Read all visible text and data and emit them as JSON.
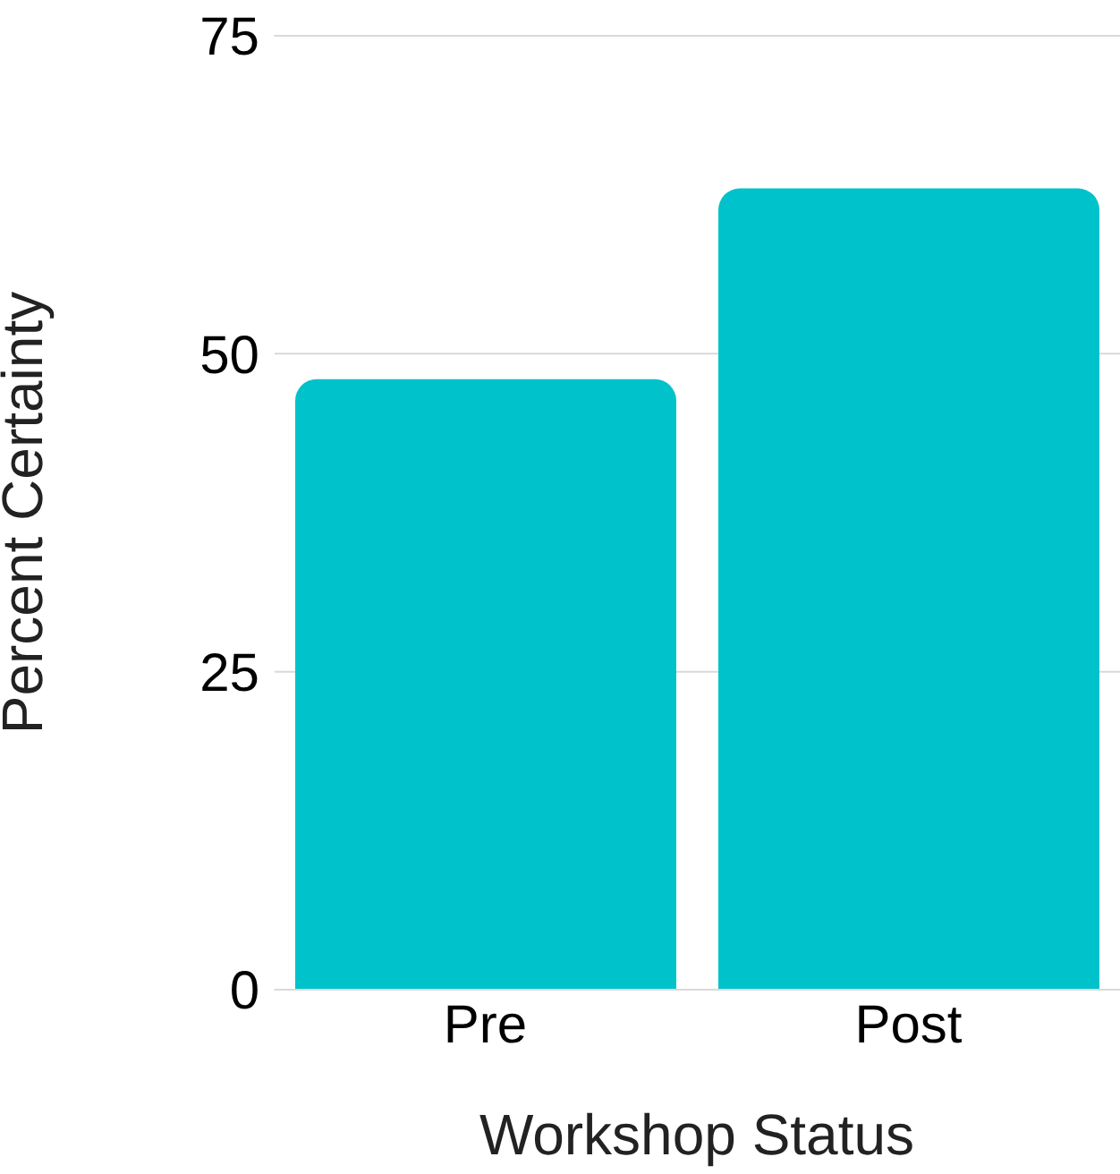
{
  "chart_data": {
    "type": "bar",
    "xlabel": "Workshop Status",
    "ylabel": "Percent Certainty",
    "categories": [
      "Pre",
      "Post"
    ],
    "values": [
      48,
      63
    ],
    "color": "#00c2cb",
    "ylim": [
      0,
      75
    ],
    "yticks": [
      0,
      25,
      50,
      75
    ],
    "grid": "y"
  }
}
